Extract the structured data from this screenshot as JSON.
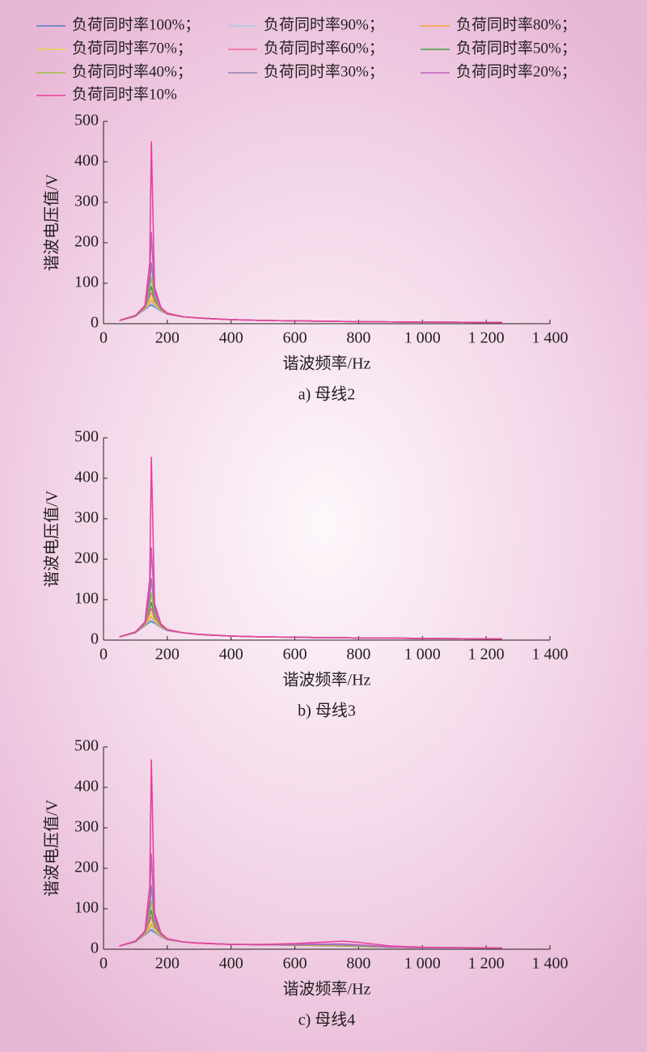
{
  "chart_data": [
    {
      "type": "line",
      "xlabel": "谐波频率/Hz",
      "ylabel": "谐波电压值/V",
      "caption": "a) 母线2",
      "x": [
        50,
        100,
        130,
        145,
        150,
        160,
        180,
        200,
        250,
        300,
        400,
        500,
        600,
        700,
        750,
        800,
        900,
        1000,
        1250
      ],
      "xlim": [
        0,
        1400
      ],
      "ylim": [
        0,
        500
      ],
      "xticks": [
        0,
        200,
        400,
        600,
        800,
        {
          "value": 1000,
          "label": "1 000"
        },
        {
          "value": 1200,
          "label": "1 200"
        },
        {
          "value": 1400,
          "label": "1 400"
        }
      ],
      "yticks": [
        0,
        100,
        200,
        300,
        400,
        500
      ],
      "series": [
        {
          "name": "负荷同时率100%；",
          "color": "#4a7fc0",
          "values": [
            8,
            18,
            35,
            45,
            46,
            42,
            31,
            23,
            17,
            14,
            10,
            8,
            7,
            6,
            5.5,
            5,
            4.5,
            4,
            3
          ]
        },
        {
          "name": "负荷同时率90%；",
          "color": "#a8cbe8",
          "values": [
            8,
            18,
            36,
            49,
            51,
            45,
            32,
            23,
            17,
            14,
            10,
            8,
            7,
            6,
            5.5,
            5,
            4.5,
            4,
            3
          ]
        },
        {
          "name": "负荷同时率80%；",
          "color": "#f4a030",
          "values": [
            8,
            19,
            37,
            54,
            58,
            48,
            33,
            24,
            17,
            14,
            10,
            8,
            7,
            6,
            5.5,
            5,
            4.5,
            4,
            3
          ]
        },
        {
          "name": "负荷同时率70%；",
          "color": "#f0d455",
          "values": [
            8,
            19,
            38,
            60,
            66,
            51,
            34,
            24,
            17,
            14,
            10,
            8,
            7,
            6,
            5.5,
            5,
            4.5,
            4,
            3
          ]
        },
        {
          "name": "负荷同时率60%；",
          "color": "#f06898",
          "values": [
            8,
            19,
            39,
            68,
            77,
            55,
            35,
            24,
            17,
            14,
            10,
            8,
            7,
            6,
            5.5,
            5,
            4.5,
            4,
            3
          ]
        },
        {
          "name": "负荷同时率50%；",
          "color": "#4a9a40",
          "values": [
            8,
            19,
            40,
            78,
            92,
            60,
            36,
            25,
            17,
            14,
            10,
            8,
            7,
            6,
            5.5,
            5,
            4.5,
            4,
            3
          ]
        },
        {
          "name": "负荷同时率40%；",
          "color": "#a0c040",
          "values": [
            8,
            20,
            41,
            88,
            115,
            65,
            37,
            25,
            17,
            14,
            10,
            8,
            7,
            6,
            5.5,
            5,
            4.5,
            4,
            3
          ]
        },
        {
          "name": "负荷同时率30%；",
          "color": "#9080b4",
          "values": [
            8,
            20,
            42,
            100,
            150,
            72,
            38,
            25,
            17,
            14,
            10,
            8,
            7,
            6,
            5.5,
            5,
            4.5,
            4,
            3
          ]
        },
        {
          "name": "负荷同时率20%；",
          "color": "#c060c0",
          "values": [
            8,
            20,
            43,
            120,
            225,
            80,
            39,
            26,
            17,
            14,
            10,
            8,
            7,
            6,
            5.5,
            5,
            4.5,
            4,
            3
          ]
        },
        {
          "name": "负荷同时率10%",
          "color": "#e8409a",
          "values": [
            8,
            20,
            45,
            150,
            450,
            90,
            40,
            26,
            17,
            14,
            10,
            8,
            7,
            6,
            5.5,
            5,
            4.5,
            4,
            3
          ]
        }
      ]
    },
    {
      "type": "line",
      "xlabel": "谐波频率/Hz",
      "ylabel": "谐波电压值/V",
      "caption": "b) 母线3",
      "x": [
        50,
        100,
        130,
        145,
        150,
        160,
        180,
        200,
        250,
        300,
        400,
        500,
        600,
        700,
        750,
        800,
        900,
        1000,
        1250
      ],
      "xlim": [
        0,
        1400
      ],
      "ylim": [
        0,
        500
      ],
      "xticks": [
        0,
        200,
        400,
        600,
        800,
        {
          "value": 1000,
          "label": "1 000"
        },
        {
          "value": 1200,
          "label": "1 200"
        },
        {
          "value": 1400,
          "label": "1 400"
        }
      ],
      "yticks": [
        0,
        100,
        200,
        300,
        400,
        500
      ],
      "series": [
        {
          "color": "#4a7fc0",
          "values": [
            8,
            18,
            35,
            45,
            46,
            42,
            31,
            23,
            18,
            14,
            10,
            8,
            7,
            6,
            6,
            5,
            5,
            4,
            3
          ]
        },
        {
          "color": "#a8cbe8",
          "values": [
            8,
            18,
            36,
            49,
            51,
            45,
            32,
            23,
            18,
            14,
            10,
            8,
            7,
            6,
            6,
            5,
            5,
            4,
            3
          ]
        },
        {
          "color": "#f4a030",
          "values": [
            8,
            19,
            37,
            54,
            58,
            48,
            33,
            24,
            18,
            14,
            10,
            8,
            7,
            6,
            6,
            5,
            5,
            4,
            3
          ]
        },
        {
          "color": "#f0d455",
          "values": [
            8,
            19,
            38,
            60,
            67,
            51,
            34,
            24,
            18,
            14,
            10,
            8,
            7,
            6,
            6,
            5,
            5,
            4,
            3
          ]
        },
        {
          "color": "#f06898",
          "values": [
            8,
            19,
            39,
            68,
            78,
            55,
            35,
            24,
            18,
            14,
            10,
            8,
            7,
            6,
            6,
            5,
            5,
            4,
            3
          ]
        },
        {
          "color": "#4a9a40",
          "values": [
            8,
            19,
            40,
            78,
            93,
            60,
            36,
            25,
            18,
            14,
            10,
            8,
            7,
            6,
            6,
            5,
            5,
            4,
            3
          ]
        },
        {
          "color": "#a0c040",
          "values": [
            8,
            20,
            41,
            88,
            116,
            65,
            37,
            25,
            18,
            14,
            10,
            8,
            7,
            6,
            6,
            5,
            5,
            4,
            3
          ]
        },
        {
          "color": "#9080b4",
          "values": [
            8,
            20,
            42,
            100,
            152,
            72,
            38,
            25,
            18,
            14,
            10,
            8,
            7,
            6,
            6,
            5,
            5,
            4,
            3
          ]
        },
        {
          "color": "#c060c0",
          "values": [
            8,
            20,
            43,
            120,
            228,
            80,
            39,
            26,
            18,
            14,
            10,
            8,
            7,
            6,
            6,
            5,
            5,
            4,
            3
          ]
        },
        {
          "color": "#e8409a",
          "values": [
            8,
            20,
            45,
            150,
            452,
            90,
            40,
            26,
            18,
            14,
            10,
            8,
            7,
            6,
            6,
            5,
            5,
            4,
            3
          ]
        }
      ]
    },
    {
      "type": "line",
      "xlabel": "谐波频率/Hz",
      "ylabel": "谐波电压值/V",
      "caption": "c) 母线4",
      "x": [
        50,
        100,
        130,
        145,
        150,
        160,
        180,
        200,
        250,
        300,
        400,
        500,
        600,
        700,
        750,
        800,
        900,
        1000,
        1250
      ],
      "xlim": [
        0,
        1400
      ],
      "ylim": [
        0,
        500
      ],
      "xticks": [
        0,
        200,
        400,
        600,
        800,
        {
          "value": 1000,
          "label": "1 000"
        },
        {
          "value": 1200,
          "label": "1 200"
        },
        {
          "value": 1400,
          "label": "1 400"
        }
      ],
      "yticks": [
        0,
        100,
        200,
        300,
        400,
        500
      ],
      "series": [
        {
          "color": "#4a7fc0",
          "values": [
            8,
            18,
            35,
            46,
            47,
            42,
            31,
            23,
            18,
            15,
            12,
            11,
            10,
            9,
            8,
            7,
            5,
            4,
            3
          ]
        },
        {
          "color": "#a8cbe8",
          "values": [
            8,
            18,
            36,
            50,
            52,
            45,
            32,
            23,
            18,
            15,
            12,
            11,
            10,
            9,
            8,
            7,
            5,
            4,
            3
          ]
        },
        {
          "color": "#f4a030",
          "values": [
            8,
            19,
            37,
            55,
            60,
            48,
            33,
            24,
            18,
            15,
            12,
            11,
            10,
            9,
            8,
            7,
            5,
            4,
            3
          ]
        },
        {
          "color": "#f0d455",
          "values": [
            8,
            19,
            38,
            62,
            68,
            51,
            34,
            24,
            18,
            15,
            12,
            11,
            10,
            9,
            8,
            7,
            5,
            4,
            3
          ]
        },
        {
          "color": "#f06898",
          "values": [
            8,
            19,
            39,
            70,
            80,
            55,
            35,
            24,
            18,
            15,
            12,
            11,
            10,
            9,
            8,
            7,
            5,
            4,
            3
          ]
        },
        {
          "color": "#4a9a40",
          "values": [
            8,
            19,
            40,
            80,
            96,
            60,
            36,
            25,
            18,
            15,
            12,
            11,
            10,
            9,
            8,
            7,
            5,
            4,
            3
          ]
        },
        {
          "color": "#a0c040",
          "values": [
            8,
            20,
            41,
            90,
            120,
            65,
            37,
            25,
            18,
            15,
            12,
            11,
            10,
            9,
            8,
            7,
            5,
            4,
            3
          ]
        },
        {
          "color": "#9080b4",
          "values": [
            8,
            20,
            42,
            104,
            158,
            72,
            38,
            25,
            18,
            15,
            12,
            11,
            11,
            11,
            10,
            9,
            5,
            4,
            3
          ]
        },
        {
          "color": "#c060c0",
          "values": [
            8,
            20,
            43,
            124,
            235,
            80,
            39,
            26,
            18,
            15,
            12,
            11,
            12,
            13,
            13,
            11,
            6,
            4,
            3
          ]
        },
        {
          "color": "#e8409a",
          "values": [
            8,
            20,
            45,
            155,
            468,
            90,
            40,
            26,
            18,
            15,
            12,
            12,
            14,
            18,
            20,
            17,
            8,
            5,
            3
          ]
        }
      ]
    }
  ]
}
